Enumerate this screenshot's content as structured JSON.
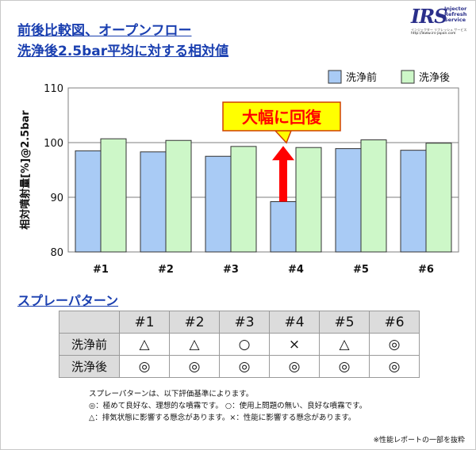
{
  "header": {
    "title_line1": "前後比較図、オープンフロー",
    "title_line2": "洗浄後2.5bar平均に対する相対値"
  },
  "logo": {
    "mark": "IRS",
    "line1": "Injector",
    "line2": "Refresh",
    "line3": "Service",
    "tagline": "インジェクター リフレッシュ サービス",
    "url": "http://www.irs-japan.com"
  },
  "chart_data": {
    "type": "bar",
    "categories": [
      "#1",
      "#2",
      "#3",
      "#4",
      "#5",
      "#6"
    ],
    "series": [
      {
        "name": "洗浄前",
        "values": [
          98.5,
          98.3,
          97.5,
          89.2,
          98.9,
          98.6
        ],
        "color": "#a9cbf5"
      },
      {
        "name": "洗浄後",
        "values": [
          100.7,
          100.4,
          99.3,
          99.1,
          100.5,
          99.9
        ],
        "color": "#cdf7c8"
      }
    ],
    "title": "",
    "xlabel": "",
    "ylabel": "相対噴射量[%]@2.5bar",
    "ylim": [
      80,
      110
    ],
    "yticks": [
      80,
      90,
      100,
      110
    ],
    "grid": "horizontal",
    "legend_position": "top-right",
    "annotation": {
      "text": "大幅に回復",
      "target": "#4",
      "arrow_color": "#ff0000",
      "box_color": "#ffff00"
    }
  },
  "spray": {
    "section_title": "スプレーパターン",
    "columns": [
      "#1",
      "#2",
      "#3",
      "#4",
      "#5",
      "#6"
    ],
    "rows": [
      {
        "label": "洗浄前",
        "values": [
          "△",
          "△",
          "○",
          "×",
          "△",
          "◎"
        ]
      },
      {
        "label": "洗浄後",
        "values": [
          "◎",
          "◎",
          "◎",
          "◎",
          "◎",
          "◎"
        ]
      }
    ]
  },
  "notes": [
    "スプレーパターンは、以下評価基準によります。",
    "◎：極めて良好な、理想的な噴霧です。 ○：使用上問題の無い、良好な噴霧です。",
    "△：排気状態に影響する懸念があります。×：性能に影響する懸念があります。"
  ],
  "footnote": "※性能レポートの一部を抜粋"
}
